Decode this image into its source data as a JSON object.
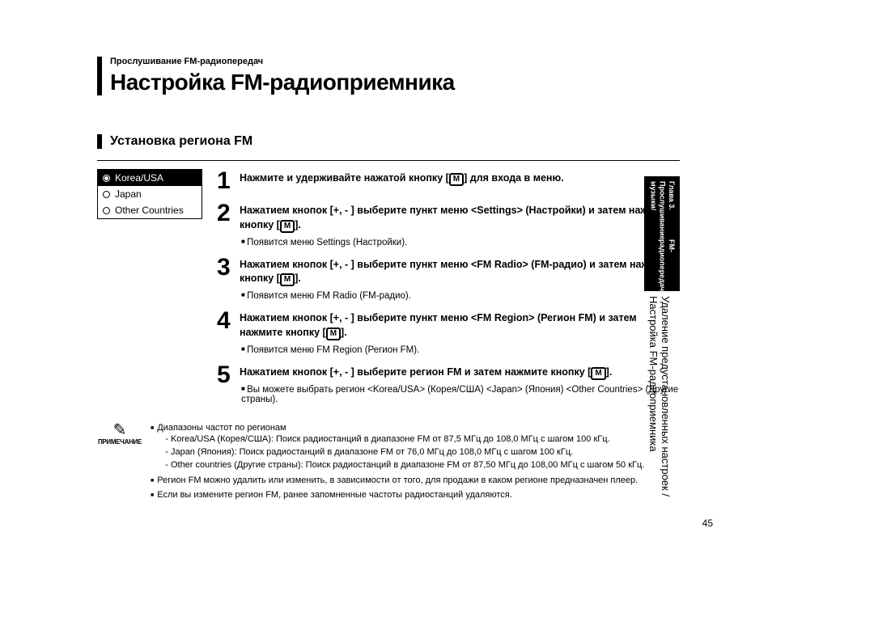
{
  "header": {
    "breadcrumb": "Прослушивание FM-радиопередач",
    "title": "Настройка FM-радиоприемника"
  },
  "section": {
    "title": "Установка региона FM"
  },
  "regionBox": {
    "items": [
      {
        "label": "Korea/USA",
        "selected": true
      },
      {
        "label": "Japan",
        "selected": false
      },
      {
        "label": "Other Countries",
        "selected": false
      }
    ]
  },
  "steps": [
    {
      "num": "1",
      "pre": "Нажмите и удерживайте нажатой кнопку [",
      "post": "] для входа в меню.",
      "note": null
    },
    {
      "num": "2",
      "pre": "Нажатием кнопок [+, - ] выберите пункт меню <Settings> (Настройки) и затем нажмите кнопку [",
      "post": "].",
      "note": "Появится меню Settings (Настройки)."
    },
    {
      "num": "3",
      "pre": "Нажатием кнопок [+, - ] выберите пункт меню <FM Radio> (FM-радио) и затем нажмите кнопку [",
      "post": "].",
      "note": "Появится меню FM Radio (FM-радио)."
    },
    {
      "num": "4",
      "pre": "Нажатием кнопок [+, - ] выберите пункт меню <FM Region> (Регион FM) и затем нажмите кнопку [",
      "post": "].",
      "note": "Появится меню FM Region (Регион FM)."
    },
    {
      "num": "5",
      "pre": "Нажатием кнопок [+, - ] выберите регион FM и затем нажмите кнопку [",
      "post": "].",
      "note": "Вы можете выбрать регион <Korea/USA> (Корея/США) <Japan> (Япония) <Other Countries> (Другие страны)."
    }
  ],
  "noteBlock": {
    "caption": "ПРИМЕЧАНИЕ",
    "bullets": [
      {
        "text": "Диапазоны частот по регионам",
        "subs": [
          "- Korea/USA (Корея/США): Поиск радиостанций в диапазоне FM от 87,5 МГц до 108,0 МГц с шагом 100 кГц.",
          "- Japan (Япония): Поиск радиостанций в диапазоне FM от 76,0 МГц до 108,0 МГц с шагом 100 кГц.",
          "- Other countries (Другие страны): Поиск радиостанций в диапазоне FM от 87,50 МГц до 108,00 МГц с шагом 50 кГц."
        ]
      },
      {
        "text": "Регион FM можно удалить или изменить, в зависимости от того, для продажи в каком регионе предназначен плеер.",
        "subs": []
      },
      {
        "text": "Если вы измените регион FM, ранее запомненные частоты радиостанций удаляются.",
        "subs": []
      }
    ]
  },
  "sideTab": {
    "topLine1": "Глава 3. Прослушивание музыки/",
    "topLine2": "FM-радиопередач",
    "bottomLine1": "Удаление предустановленных настроек",
    "bottomLine2": "/Настройка FM-радиоприемника"
  },
  "pageNumber": "45"
}
